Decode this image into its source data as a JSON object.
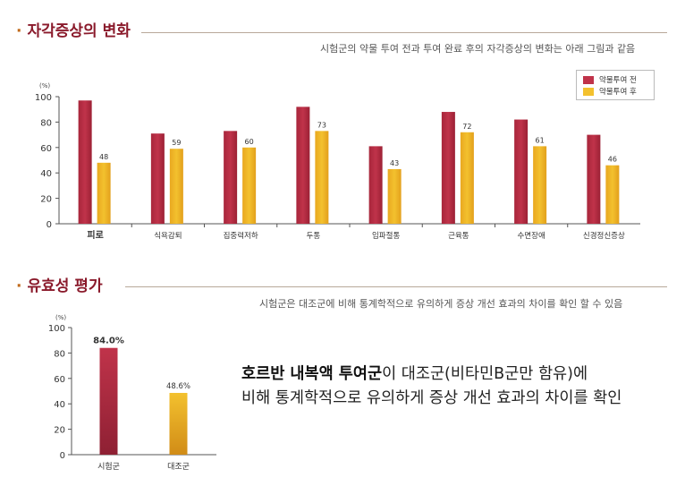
{
  "section1": {
    "title": "자각증상의 변화",
    "subtitle": "시험군의 약물 투여 전과 투여 완료 후의 자각증상의 변화는 아래 그림과 같음"
  },
  "section2": {
    "title": "유효성 평가",
    "subtitle": "시험군은 대조군에 비해 통계학적으로 유의하게 증상 개선 효과의 차이를 확인 할 수 있음"
  },
  "message": {
    "line1_bold": "호르반 내복액 투여군",
    "line1_rest": "이 대조군(비타민B군만 함유)에",
    "line2": "비해 통계학적으로 유의하게 증상 개선 효과의 차이를 확인"
  },
  "colors": {
    "before": "#c0334a",
    "after": "#f3c12e",
    "title": "#8a1a2b"
  },
  "chart_data": [
    {
      "type": "bar",
      "unit_label": "(%)",
      "ylim": [
        0,
        100
      ],
      "yticks": [
        0,
        20,
        40,
        60,
        80,
        100
      ],
      "categories": [
        "피로",
        "식욕감퇴",
        "집중력저하",
        "두통",
        "임파절통",
        "근육통",
        "수면장애",
        "신경정신증상"
      ],
      "series": [
        {
          "name": "약물투여 전",
          "values": [
            97,
            71,
            73,
            92,
            61,
            88,
            82,
            70
          ],
          "labels": [
            "",
            "",
            "",
            "",
            "",
            "",
            "",
            ""
          ]
        },
        {
          "name": "약물투여 후",
          "values": [
            48,
            59,
            60,
            73,
            43,
            72,
            61,
            46
          ],
          "labels": [
            "48",
            "59",
            "60",
            "73",
            "43",
            "72",
            "61",
            "46"
          ]
        }
      ],
      "legend_position": "top-right",
      "grid": false
    },
    {
      "type": "bar",
      "unit_label": "(%)",
      "ylim": [
        0,
        100
      ],
      "yticks": [
        0,
        20,
        40,
        60,
        80,
        100
      ],
      "categories": [
        "시험군",
        "대조군"
      ],
      "values": [
        84.0,
        48.6
      ],
      "labels": [
        "84.0%",
        "48.6%"
      ],
      "grid": false
    }
  ]
}
